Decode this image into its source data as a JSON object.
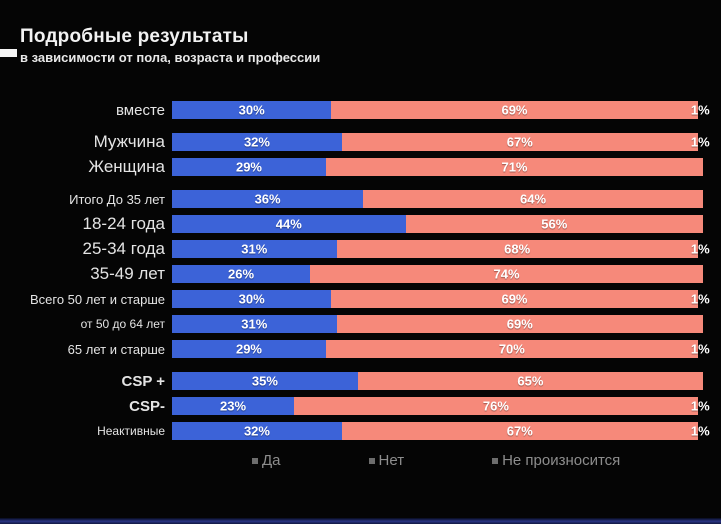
{
  "header": {
    "title": "Подробные результаты",
    "subtitle": "в зависимости от пола, возраста и профессии"
  },
  "legend": {
    "items": [
      {
        "label": "Да"
      },
      {
        "label": "Нет"
      },
      {
        "label": "Не произносится"
      }
    ]
  },
  "colors": {
    "yes": "#3c63d8",
    "no": "#f6897a",
    "not_said": "#0b0b0b",
    "accent_line": "#2a3585"
  },
  "chart_data": {
    "type": "bar",
    "stacked": true,
    "orientation": "horizontal",
    "unit": "%",
    "title": "Подробные результаты",
    "subtitle": "в зависимости от пола, возраста и профессии",
    "series_names": [
      "Да",
      "Нет",
      "Не произносится"
    ],
    "xlim": [
      0,
      100
    ],
    "legend_position": "bottom",
    "groups": [
      {
        "rows": [
          {
            "label": "вместе",
            "label_size": "md",
            "values": [
              30,
              69,
              1
            ]
          }
        ]
      },
      {
        "rows": [
          {
            "label": "Мужчина",
            "label_size": "lg",
            "values": [
              32,
              67,
              1
            ]
          },
          {
            "label": "Женщина",
            "label_size": "lg",
            "values": [
              29,
              71,
              0
            ]
          }
        ]
      },
      {
        "rows": [
          {
            "label": "Итого До 35 лет",
            "label_size": "sm",
            "values": [
              36,
              64,
              0
            ]
          },
          {
            "label": "18-24 года",
            "label_size": "lg",
            "values": [
              44,
              56,
              0
            ]
          },
          {
            "label": "25-34 года",
            "label_size": "lg",
            "values": [
              31,
              68,
              1
            ]
          },
          {
            "label": "35-49 лет",
            "label_size": "lg",
            "values": [
              26,
              74,
              0
            ]
          },
          {
            "label": "Всего 50 лет и старше",
            "label_size": "sm",
            "values": [
              30,
              69,
              1
            ]
          },
          {
            "label": "от 50 до 64 лет",
            "label_size": "xs",
            "values": [
              31,
              69,
              0
            ]
          },
          {
            "label": "65 лет и старше",
            "label_size": "sm",
            "values": [
              29,
              70,
              1
            ]
          }
        ]
      },
      {
        "rows": [
          {
            "label": "CSP +",
            "label_size": "md-bold",
            "values": [
              35,
              65,
              0
            ]
          },
          {
            "label": "CSP-",
            "label_size": "md-bold",
            "values": [
              23,
              76,
              1
            ]
          },
          {
            "label": "Неактивные",
            "label_size": "xs",
            "values": [
              32,
              67,
              1
            ]
          }
        ]
      }
    ]
  }
}
